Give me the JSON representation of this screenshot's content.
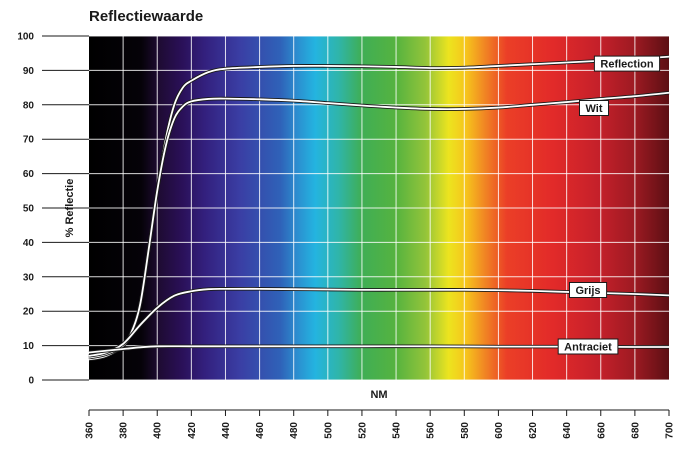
{
  "chart_data": {
    "type": "line",
    "title": "Reflectiewaarde",
    "xlabel": "NM",
    "ylabel": "% Reflectie",
    "xlim": [
      360,
      700
    ],
    "ylim": [
      0,
      100
    ],
    "x_ticks": [
      "360",
      "380",
      "400",
      "420",
      "440",
      "460",
      "480",
      "500",
      "520",
      "540",
      "560",
      "580",
      "600",
      "620",
      "640",
      "660",
      "680",
      "700"
    ],
    "y_ticks": [
      "0",
      "10",
      "20",
      "30",
      "40",
      "50",
      "60",
      "70",
      "80",
      "90",
      "100"
    ],
    "grid": true,
    "background": "visible light spectrum",
    "series": [
      {
        "name": "Reflection",
        "x": [
          360,
          370,
          380,
          385,
          390,
          395,
          400,
          405,
          410,
          415,
          420,
          430,
          440,
          460,
          480,
          500,
          520,
          540,
          560,
          580,
          600,
          620,
          640,
          660,
          680,
          700
        ],
        "y": [
          6,
          7,
          10,
          14,
          22,
          38,
          55,
          70,
          80,
          85,
          87,
          89.5,
          90.5,
          91,
          91.3,
          91.3,
          91.2,
          91,
          90.7,
          90.8,
          91.3,
          91.8,
          92.3,
          92.8,
          93.3,
          94
        ]
      },
      {
        "name": "Wit",
        "x": [
          360,
          370,
          380,
          385,
          390,
          395,
          400,
          405,
          410,
          415,
          420,
          430,
          440,
          460,
          480,
          500,
          520,
          540,
          560,
          580,
          600,
          620,
          640,
          660,
          680,
          700
        ],
        "y": [
          6.5,
          7.5,
          10,
          14,
          22,
          38,
          55,
          68,
          76,
          79.5,
          81,
          81.7,
          81.8,
          81.6,
          81.2,
          80.5,
          79.8,
          79.2,
          78.8,
          78.8,
          79.2,
          80,
          80.8,
          81.7,
          82.5,
          83.5
        ]
      },
      {
        "name": "Grijs",
        "x": [
          360,
          370,
          380,
          390,
          400,
          410,
          420,
          430,
          440,
          460,
          480,
          500,
          520,
          540,
          560,
          580,
          600,
          620,
          640,
          660,
          680,
          700
        ],
        "y": [
          7,
          8,
          10.5,
          16,
          21,
          24.5,
          25.8,
          26.4,
          26.5,
          26.5,
          26.4,
          26.3,
          26.2,
          26.2,
          26.2,
          26.2,
          26.1,
          25.9,
          25.6,
          25.3,
          25,
          24.6
        ]
      },
      {
        "name": "Antraciet",
        "x": [
          360,
          370,
          380,
          390,
          400,
          420,
          440,
          480,
          520,
          560,
          600,
          640,
          680,
          700
        ],
        "y": [
          8,
          8.5,
          9,
          9.5,
          9.8,
          9.8,
          9.8,
          9.8,
          9.8,
          9.8,
          9.7,
          9.7,
          9.6,
          9.6
        ]
      }
    ]
  }
}
